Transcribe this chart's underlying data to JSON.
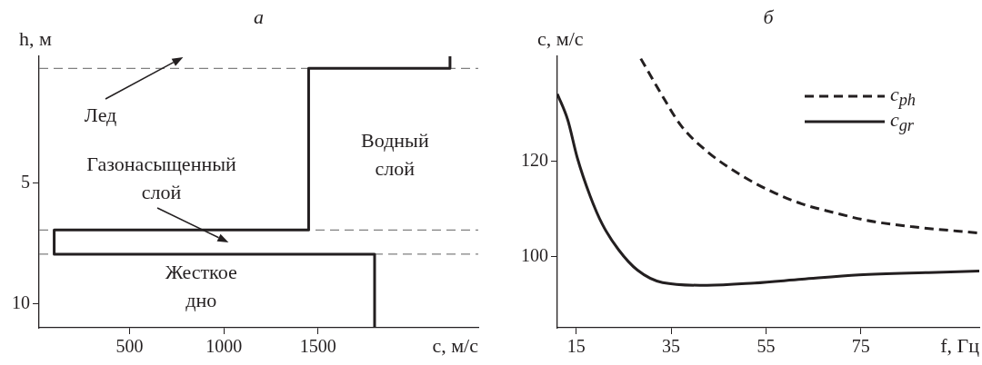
{
  "chart_data": [
    {
      "type": "line",
      "title": "а",
      "xlabel": "c, м/с",
      "ylabel": "h, м",
      "xlim": [
        20,
        2350
      ],
      "xticks": [
        500,
        1000,
        1500
      ],
      "ylim": [
        11,
        -0.25
      ],
      "yticks": [
        5,
        10
      ],
      "series": [
        {
          "color": "#231f20",
          "line_style": "solid",
          "x": [
            2200,
            2200,
            1450,
            1450,
            100,
            100,
            1800,
            1800
          ],
          "values": [
            -0.25,
            0.25,
            0.25,
            6.95,
            6.95,
            7.95,
            7.95,
            11
          ]
        }
      ],
      "ref_lines": [
        {
          "axis": "y",
          "value": 0.25,
          "color": "#808080",
          "line_style": "dashed"
        },
        {
          "axis": "y",
          "value": 6.95,
          "color": "#808080",
          "line_style": "dashed"
        },
        {
          "axis": "y",
          "value": 7.95,
          "color": "#808080",
          "line_style": "dashed"
        }
      ],
      "annotations": [
        "Лед",
        "Газонасыщенный слой",
        "Водный слой",
        "Жесткое дно"
      ],
      "marker": "none"
    },
    {
      "type": "line",
      "title": "б",
      "xlabel": "f, Гц",
      "ylabel": "c, м/с",
      "xlim": [
        11,
        100
      ],
      "xticks": [
        15,
        35,
        55,
        75
      ],
      "ylim": [
        85,
        142
      ],
      "yticks": [
        100,
        120
      ],
      "series": [
        {
          "name": "c$_{ph}$",
          "color": "#231f20",
          "line_style": "dashed",
          "x": [
            28.6,
            32.6,
            37.2,
            42.6,
            49.3,
            56.0,
            62.6,
            69.3,
            76.0,
            86.0,
            100
          ],
          "values": [
            141.5,
            134.6,
            127.3,
            122.0,
            117.3,
            113.7,
            111.0,
            109.2,
            107.6,
            106.2,
            104.9
          ]
        },
        {
          "name": "c$_{gr}$",
          "color": "#231f20",
          "line_style": "solid",
          "x": [
            11,
            13.2,
            15.2,
            17.9,
            20.5,
            23.9,
            27.9,
            33.2,
            42.6,
            52.6,
            62.6,
            74.6,
            89.3,
            100
          ],
          "values": [
            134.1,
            128.6,
            120.7,
            112.7,
            106.7,
            101.4,
            97.1,
            94.5,
            93.9,
            94.4,
            95.2,
            96.1,
            96.6,
            96.9
          ]
        }
      ],
      "legend": "top right",
      "marker": "none"
    }
  ]
}
